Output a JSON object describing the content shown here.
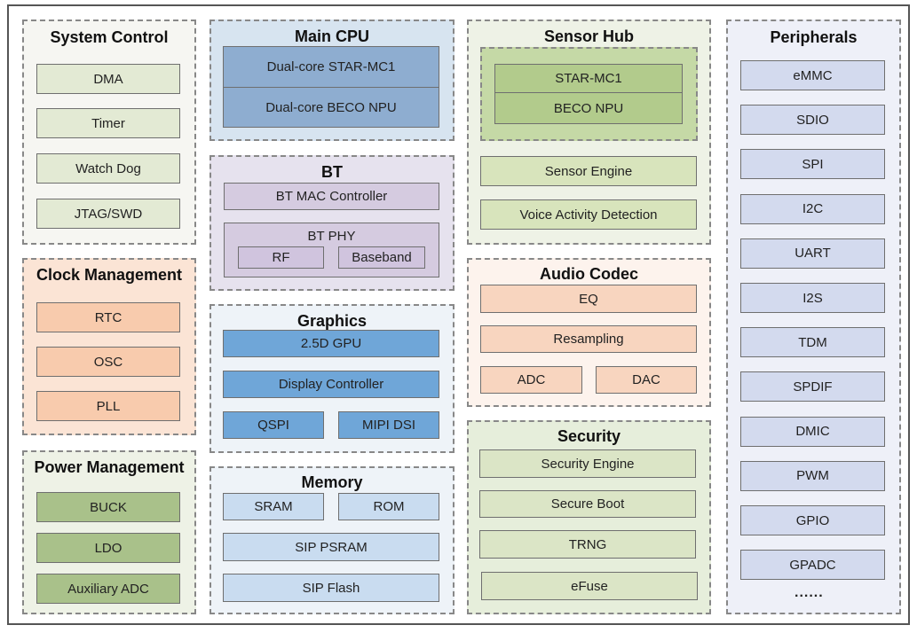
{
  "colors": {
    "system_control_item": "#e3ead4",
    "clock_item": "#f8cbad",
    "power_item": "#a9c18a",
    "cpu_item": "#8eadd0",
    "bt_item": "#d5cbe0",
    "graphics_item": "#6fa6d8",
    "memory_item": "#c9dcf0",
    "sensor_item": "#d8e4bc",
    "sensor_core": "#b2cb8c",
    "audio_item": "#f8d5bf",
    "security_item": "#dbe5c6",
    "peripheral_item": "#d3daee"
  },
  "system_control": {
    "title": "System Control",
    "items": [
      "DMA",
      "Timer",
      "Watch Dog",
      "JTAG/SWD"
    ]
  },
  "clock_management": {
    "title": "Clock Management",
    "items": [
      "RTC",
      "OSC",
      "PLL"
    ]
  },
  "power_management": {
    "title": "Power Management",
    "items": [
      "BUCK",
      "LDO",
      "Auxiliary ADC"
    ]
  },
  "main_cpu": {
    "title": "Main CPU",
    "items": [
      "Dual-core STAR-MC1",
      "Dual-core BECO NPU"
    ]
  },
  "bt": {
    "title": "BT",
    "mac": "BT MAC Controller",
    "phy": "BT PHY",
    "rf": "RF",
    "baseband": "Baseband"
  },
  "graphics": {
    "title": "Graphics",
    "items": [
      "2.5D GPU",
      "Display Controller",
      "QSPI",
      "MIPI DSI"
    ]
  },
  "memory": {
    "title": "Memory",
    "items": [
      "SRAM",
      "ROM",
      "SIP PSRAM",
      "SIP Flash"
    ]
  },
  "sensor_hub": {
    "title": "Sensor Hub",
    "cores": [
      "STAR-MC1",
      "BECO NPU"
    ],
    "items": [
      "Sensor Engine",
      "Voice Activity Detection"
    ]
  },
  "audio_codec": {
    "title": "Audio Codec",
    "items": [
      "EQ",
      "Resampling",
      "ADC",
      "DAC"
    ]
  },
  "security": {
    "title": "Security",
    "items": [
      "Security Engine",
      "Secure Boot",
      "TRNG",
      "eFuse"
    ]
  },
  "peripherals": {
    "title": "Peripherals",
    "items": [
      "eMMC",
      "SDIO",
      "SPI",
      "I2C",
      "UART",
      "I2S",
      "TDM",
      "SPDIF",
      "DMIC",
      "PWM",
      "GPIO",
      "GPADC"
    ],
    "more": "......"
  }
}
